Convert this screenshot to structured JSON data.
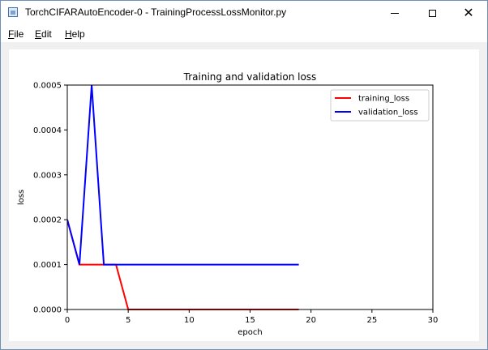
{
  "window": {
    "title": "TorchCIFARAutoEncoder-0 - TrainingProcessLossMonitor.py",
    "icons": {
      "app": "app-window-icon",
      "minimize": "minimize-icon",
      "maximize": "maximize-icon",
      "close": "close-icon"
    },
    "close_glyph": "✕"
  },
  "menu": {
    "file": {
      "first": "F",
      "rest": "ile"
    },
    "edit": {
      "first": "E",
      "rest": "dit"
    },
    "help": {
      "first": "H",
      "rest": "elp"
    }
  },
  "chart_data": {
    "type": "line",
    "title": "Training and validation loss",
    "xlabel": "epoch",
    "ylabel": "loss",
    "xlim": [
      0,
      30
    ],
    "ylim": [
      0,
      0.0005
    ],
    "xticks": [
      0,
      5,
      10,
      15,
      20,
      25,
      30
    ],
    "xtick_labels": [
      "0",
      "5",
      "10",
      "15",
      "20",
      "25",
      "30"
    ],
    "yticks": [
      0,
      0.0001,
      0.0002,
      0.0003,
      0.0004,
      0.0005
    ],
    "ytick_labels": [
      "0.0000",
      "0.0001",
      "0.0002",
      "0.0003",
      "0.0004",
      "0.0005"
    ],
    "grid": false,
    "legend_position": "top-right",
    "x": [
      0,
      1,
      2,
      3,
      4,
      5,
      6,
      7,
      8,
      9,
      10,
      11,
      12,
      13,
      14,
      15,
      16,
      17,
      18,
      19
    ],
    "series": [
      {
        "name": "training_loss",
        "color": "#ff0000",
        "values": [
          0.0002,
          0.0001,
          0.0001,
          0.0001,
          0.0001,
          0.0,
          0.0,
          0.0,
          0.0,
          0.0,
          0.0,
          0.0,
          0.0,
          0.0,
          0.0,
          0.0,
          0.0,
          0.0,
          0.0,
          0.0
        ]
      },
      {
        "name": "validation_loss",
        "color": "#0000ff",
        "values": [
          0.0002,
          0.0001,
          0.0005,
          0.0001,
          0.0001,
          0.0001,
          0.0001,
          0.0001,
          0.0001,
          0.0001,
          0.0001,
          0.0001,
          0.0001,
          0.0001,
          0.0001,
          0.0001,
          0.0001,
          0.0001,
          0.0001,
          0.0001
        ]
      }
    ]
  }
}
